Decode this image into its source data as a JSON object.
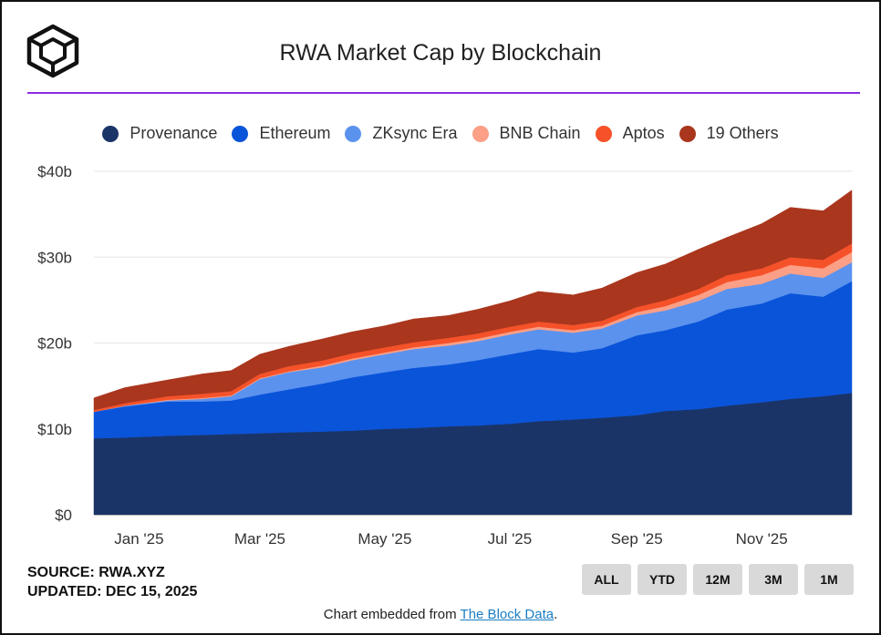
{
  "title": "RWA Market Cap by Blockchain",
  "source_line": "SOURCE: RWA.XYZ",
  "updated_line": "UPDATED: DEC 15, 2025",
  "range_buttons": [
    "ALL",
    "YTD",
    "12M",
    "3M",
    "1M"
  ],
  "footer": {
    "prefix": "Chart embedded from ",
    "link_text": "The Block Data",
    "suffix": "."
  },
  "colors": {
    "title_rule": "#8a2be2",
    "gridline": "#e6e6e6"
  },
  "chart_data": {
    "type": "area",
    "stacked": true,
    "title": "RWA Market Cap by Blockchain",
    "y_ticks": [
      "$0",
      "$10b",
      "$20b",
      "$30b",
      "$40b"
    ],
    "y_tick_values": [
      0,
      10,
      20,
      30,
      40
    ],
    "ylim": [
      0,
      40
    ],
    "y_unit": "USD billions",
    "x_tick_labels": [
      "Jan '25",
      "Mar '25",
      "May '25",
      "Jul '25",
      "Sep '25",
      "Nov '25"
    ],
    "x_tick_dates": [
      "2025-01-01",
      "2025-03-01",
      "2025-05-01",
      "2025-07-01",
      "2025-09-01",
      "2025-11-01"
    ],
    "xlim": [
      "2024-12-10",
      "2025-12-15"
    ],
    "grid": true,
    "legend_position": "top",
    "x": [
      "2024-12-10",
      "2024-12-25",
      "2025-01-15",
      "2025-02-01",
      "2025-02-15",
      "2025-03-01",
      "2025-03-15",
      "2025-04-01",
      "2025-04-15",
      "2025-05-01",
      "2025-05-15",
      "2025-06-01",
      "2025-06-15",
      "2025-07-01",
      "2025-07-15",
      "2025-08-01",
      "2025-08-15",
      "2025-09-01",
      "2025-09-15",
      "2025-10-01",
      "2025-10-15",
      "2025-11-01",
      "2025-11-15",
      "2025-12-01",
      "2025-12-15"
    ],
    "series": [
      {
        "name": "Provenance",
        "color": "#1b3468",
        "values": [
          8.9,
          9.0,
          9.2,
          9.3,
          9.4,
          9.5,
          9.6,
          9.7,
          9.8,
          10.0,
          10.1,
          10.3,
          10.4,
          10.6,
          10.9,
          11.1,
          11.3,
          11.6,
          12.1,
          12.3,
          12.7,
          13.1,
          13.5,
          13.8,
          14.2
        ]
      },
      {
        "name": "Ethereum",
        "color": "#0a54d9",
        "values": [
          3.1,
          3.6,
          4.0,
          3.9,
          3.9,
          4.5,
          5.0,
          5.6,
          6.2,
          6.6,
          7.0,
          7.2,
          7.6,
          8.1,
          8.4,
          7.8,
          8.1,
          9.3,
          9.4,
          10.2,
          11.2,
          11.5,
          12.3,
          11.6,
          13.0
        ]
      },
      {
        "name": "ZKsync Era",
        "color": "#5b92ee",
        "values": [
          0.0,
          0.1,
          0.1,
          0.3,
          0.5,
          1.8,
          2.0,
          1.9,
          2.0,
          2.1,
          2.2,
          2.2,
          2.2,
          2.3,
          2.3,
          2.3,
          2.3,
          2.3,
          2.3,
          2.4,
          2.4,
          2.3,
          2.3,
          2.2,
          2.2
        ]
      },
      {
        "name": "BNB Chain",
        "color": "#fb9f86",
        "values": [
          0.0,
          0.0,
          0.1,
          0.1,
          0.1,
          0.1,
          0.1,
          0.2,
          0.2,
          0.2,
          0.2,
          0.3,
          0.3,
          0.3,
          0.3,
          0.3,
          0.3,
          0.4,
          0.5,
          0.7,
          0.8,
          1.0,
          1.0,
          1.1,
          1.2
        ]
      },
      {
        "name": "Aptos",
        "color": "#f5522a",
        "values": [
          0.2,
          0.3,
          0.4,
          0.5,
          0.5,
          0.5,
          0.6,
          0.6,
          0.6,
          0.6,
          0.6,
          0.6,
          0.6,
          0.6,
          0.6,
          0.6,
          0.6,
          0.6,
          0.7,
          0.7,
          0.8,
          0.8,
          0.9,
          1.0,
          1.0
        ]
      },
      {
        "name": "19 Others",
        "color": "#a9361d",
        "values": [
          1.4,
          1.8,
          1.9,
          2.3,
          2.4,
          2.3,
          2.3,
          2.5,
          2.5,
          2.5,
          2.7,
          2.6,
          2.8,
          3.0,
          3.5,
          3.5,
          3.8,
          4.0,
          4.2,
          4.6,
          4.4,
          5.2,
          5.8,
          5.7,
          6.2
        ]
      }
    ]
  }
}
